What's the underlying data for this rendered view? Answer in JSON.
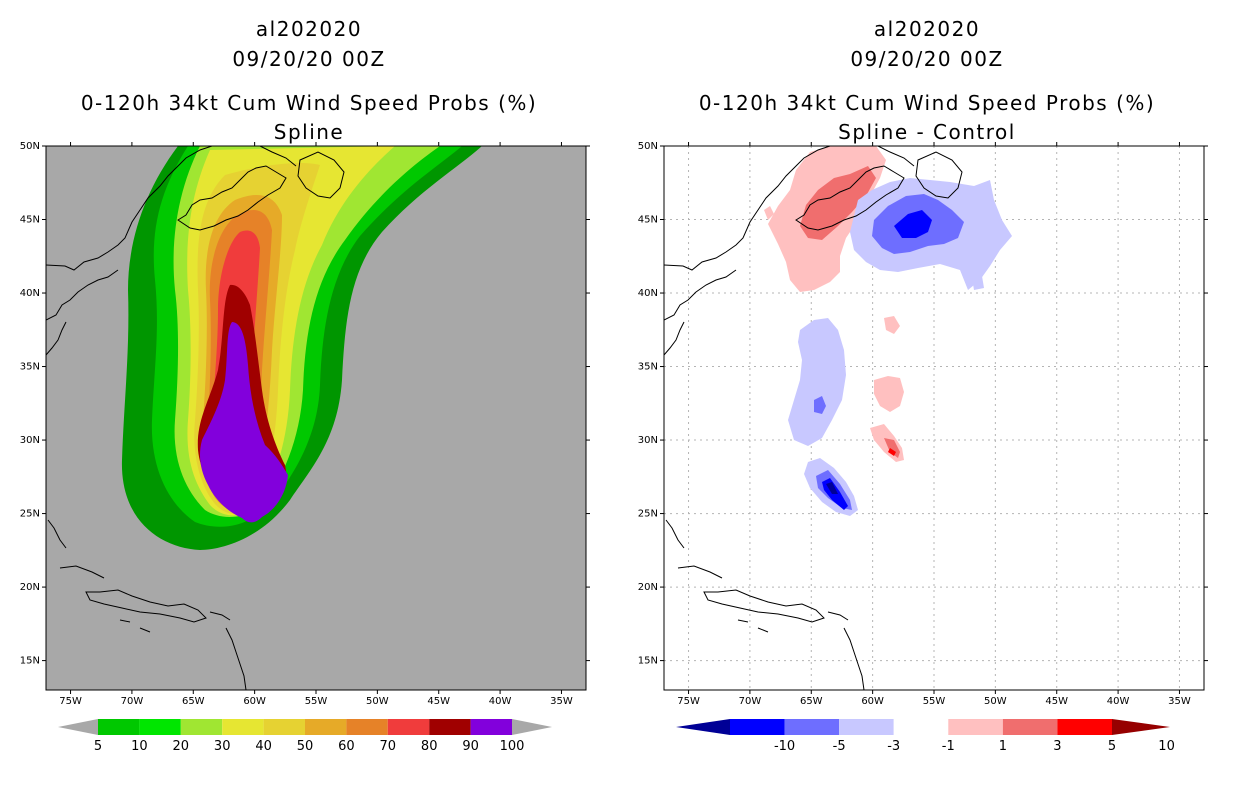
{
  "left": {
    "storm_id": "al202020",
    "datetime": "09/20/20 00Z",
    "product": "0-120h 34kt Cum Wind Speed Probs (%)",
    "subtitle": "Spline",
    "map_background": "#a8a8a8",
    "legend": {
      "labels": [
        "5",
        "10",
        "20",
        "30",
        "40",
        "50",
        "60",
        "70",
        "80",
        "90",
        "100"
      ],
      "colors": [
        "#009600",
        "#00c800",
        "#00e600",
        "#a0e632",
        "#e6e632",
        "#e6d232",
        "#e6aa28",
        "#e68228",
        "#f03c3c",
        "#a00000",
        "#8200dc"
      ],
      "end_color": "#a8a8a8"
    }
  },
  "right": {
    "storm_id": "al202020",
    "datetime": "09/20/20 00Z",
    "product": "0-120h 34kt Cum Wind Speed Probs (%)",
    "subtitle": "Spline - Control",
    "map_background": "#ffffff",
    "legend": {
      "labels": [
        "-10",
        "-5",
        "-3",
        "-1",
        "1",
        "3",
        "5",
        "10"
      ],
      "colors": [
        "#000096",
        "#0000ff",
        "#6e6eff",
        "#c8c8ff",
        "#ffffff",
        "#ffc0c0",
        "#f06e6e",
        "#ff0000",
        "#960000"
      ]
    }
  },
  "axes": {
    "lat_labels": [
      "50N",
      "45N",
      "40N",
      "35N",
      "30N",
      "25N",
      "20N",
      "15N"
    ],
    "lon_labels": [
      "75W",
      "70W",
      "65W",
      "60W",
      "55W",
      "50W",
      "45W",
      "40W",
      "35W"
    ]
  }
}
